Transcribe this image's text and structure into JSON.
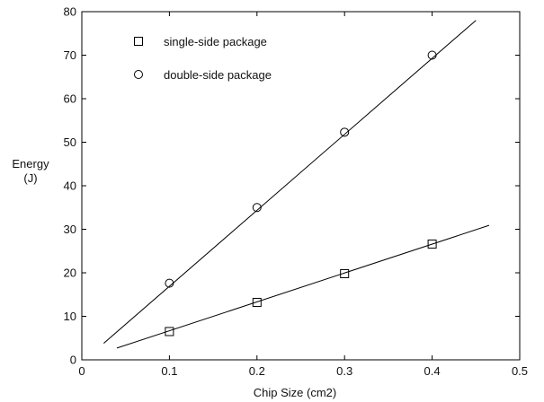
{
  "chart_data": {
    "type": "line",
    "xlabel": "Chip Size (cm2)",
    "ylabel": [
      "Energy",
      "(J)"
    ],
    "xlim": [
      0,
      0.5
    ],
    "ylim": [
      0,
      80
    ],
    "xticks": [
      0,
      0.1,
      0.2,
      0.3,
      0.4,
      0.5
    ],
    "xtick_labels": [
      "0",
      "0.1",
      "0.2",
      "0.3",
      "0.4",
      "0.5"
    ],
    "yticks": [
      0,
      10,
      20,
      30,
      40,
      50,
      60,
      70,
      80
    ],
    "ytick_labels": [
      "0",
      "10",
      "20",
      "30",
      "40",
      "50",
      "60",
      "70",
      "80"
    ],
    "grid": false,
    "legend_position": "top-left",
    "series": [
      {
        "name": "single-side package",
        "marker": "square",
        "color": "#000000",
        "x": [
          0.1,
          0.2,
          0.3,
          0.4
        ],
        "values": [
          6.5,
          13.2,
          19.8,
          26.6
        ],
        "fit_line": {
          "x": [
            0.04,
            0.465
          ],
          "y": [
            2.7,
            30.9
          ]
        }
      },
      {
        "name": "double-side package",
        "marker": "circle",
        "color": "#000000",
        "x": [
          0.1,
          0.2,
          0.3,
          0.4
        ],
        "values": [
          17.6,
          35.0,
          52.3,
          70.0
        ],
        "fit_line": {
          "x": [
            0.025,
            0.45
          ],
          "y": [
            3.8,
            78.0
          ]
        }
      }
    ]
  }
}
